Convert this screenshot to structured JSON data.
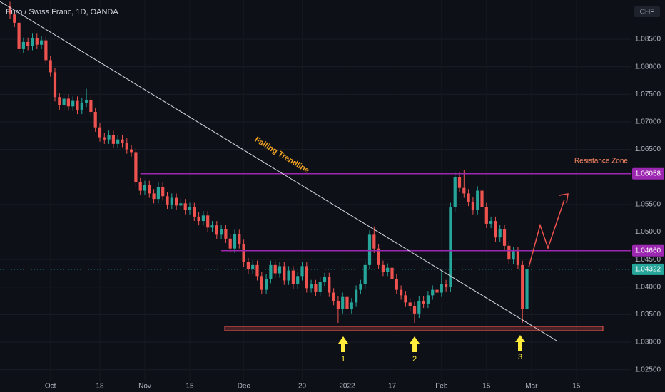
{
  "chart_data": {
    "type": "candlestick",
    "title": "Euro / Swiss Franc, 1D, OANDA",
    "y_unit": "CHF",
    "up_color": "#26a69a",
    "down_color": "#ef5350",
    "open": [
      1.091,
      1.0895,
      1.088,
      1.0832,
      1.0845,
      1.0838,
      1.0852,
      1.084,
      1.0848,
      1.0812,
      1.079,
      1.0745,
      1.073,
      1.0742,
      1.0728,
      1.0738,
      1.0722,
      1.0735,
      1.074,
      1.0718,
      1.069,
      1.0672,
      1.0668,
      1.0676,
      1.066,
      1.0668,
      1.0662,
      1.065,
      1.0645,
      1.059,
      1.0575,
      1.0585,
      1.057,
      1.056,
      1.0582,
      1.0565,
      1.055,
      1.0562,
      1.0548,
      1.0552,
      1.054,
      1.0545,
      1.0528,
      1.052,
      1.053,
      1.0508,
      1.0512,
      1.0495,
      1.0505,
      1.0488,
      1.047,
      1.0496,
      1.0478,
      1.0445,
      1.0432,
      1.044,
      1.042,
      1.0395,
      1.0415,
      1.044,
      1.0425,
      1.0438,
      1.0412,
      1.043,
      1.0405,
      1.042,
      1.0438,
      1.0398,
      1.0405,
      1.0392,
      1.041,
      1.0418,
      1.039,
      1.0375,
      1.036,
      1.0382,
      1.036,
      1.0372,
      1.0395,
      1.0405,
      1.044,
      1.0495,
      1.047,
      1.044,
      1.0428,
      1.0435,
      1.0415,
      1.0395,
      1.0385,
      1.0372,
      1.0365,
      1.0352,
      1.0375,
      1.037,
      1.0385,
      1.0395,
      1.039,
      1.0405,
      1.04,
      1.0545,
      1.06,
      1.058,
      1.057,
      1.0555,
      1.054,
      1.0575,
      1.0545,
      1.0515,
      1.052,
      1.049,
      1.0505,
      1.0475,
      1.045,
      1.0465,
      1.044,
      1.036
    ],
    "high": [
      1.0918,
      1.0903,
      1.0888,
      1.0853,
      1.0853,
      1.086,
      1.086,
      1.0856,
      1.0856,
      1.082,
      1.0798,
      1.0753,
      1.075,
      1.075,
      1.0746,
      1.0746,
      1.0743,
      1.076,
      1.0748,
      1.0726,
      1.0698,
      1.068,
      1.0684,
      1.0684,
      1.0676,
      1.0676,
      1.067,
      1.0658,
      1.0653,
      1.0598,
      1.0593,
      1.0593,
      1.0578,
      1.059,
      1.059,
      1.0573,
      1.057,
      1.057,
      1.056,
      1.056,
      1.0553,
      1.0553,
      1.0536,
      1.0538,
      1.0538,
      1.052,
      1.052,
      1.0513,
      1.0513,
      1.0496,
      1.0504,
      1.0504,
      1.0486,
      1.0453,
      1.0448,
      1.0448,
      1.0428,
      1.0423,
      1.0448,
      1.0448,
      1.0446,
      1.0446,
      1.0438,
      1.0438,
      1.0428,
      1.0446,
      1.0446,
      1.0413,
      1.0413,
      1.0418,
      1.0426,
      1.0426,
      1.0398,
      1.0383,
      1.039,
      1.039,
      1.038,
      1.0403,
      1.0413,
      1.0448,
      1.0503,
      1.051,
      1.0478,
      1.0448,
      1.0443,
      1.0443,
      1.0423,
      1.0403,
      1.0393,
      1.038,
      1.0373,
      1.0383,
      1.0383,
      1.0393,
      1.0403,
      1.0403,
      1.043,
      1.0413,
      1.0553,
      1.0608,
      1.0608,
      1.0612,
      1.0578,
      1.0563,
      1.0583,
      1.0608,
      1.0553,
      1.0528,
      1.0528,
      1.0513,
      1.0513,
      1.0483,
      1.0473,
      1.0473,
      1.0448,
      1.044
    ],
    "low": [
      1.0887,
      1.0872,
      1.0824,
      1.0824,
      1.083,
      1.083,
      1.0832,
      1.0832,
      1.0804,
      1.0782,
      1.0737,
      1.0722,
      1.0722,
      1.072,
      1.072,
      1.0714,
      1.0714,
      1.0727,
      1.071,
      1.0682,
      1.0664,
      1.066,
      1.066,
      1.0652,
      1.0652,
      1.0654,
      1.0642,
      1.0637,
      1.0582,
      1.0567,
      1.0567,
      1.0562,
      1.0552,
      1.0552,
      1.0557,
      1.0542,
      1.0542,
      1.054,
      1.054,
      1.0532,
      1.0532,
      1.052,
      1.0512,
      1.0512,
      1.05,
      1.05,
      1.0487,
      1.0487,
      1.048,
      1.0462,
      1.0462,
      1.047,
      1.0437,
      1.0424,
      1.0424,
      1.0412,
      1.0387,
      1.0387,
      1.0407,
      1.0417,
      1.0417,
      1.0404,
      1.0404,
      1.0397,
      1.0397,
      1.0412,
      1.039,
      1.039,
      1.0384,
      1.0384,
      1.0402,
      1.0382,
      1.0367,
      1.0335,
      1.0352,
      1.034,
      1.0352,
      1.0364,
      1.0387,
      1.0397,
      1.0432,
      1.0462,
      1.0432,
      1.042,
      1.042,
      1.0407,
      1.0387,
      1.0377,
      1.0364,
      1.0357,
      1.0335,
      1.0344,
      1.0362,
      1.0362,
      1.0377,
      1.0382,
      1.0382,
      1.0392,
      1.0392,
      1.0537,
      1.0572,
      1.0562,
      1.0547,
      1.0532,
      1.0532,
      1.0537,
      1.0507,
      1.0507,
      1.0482,
      1.0482,
      1.0467,
      1.0442,
      1.0442,
      1.0432,
      1.0335,
      1.034
    ],
    "close": [
      1.0895,
      1.088,
      1.0832,
      1.0845,
      1.0838,
      1.0852,
      1.084,
      1.0848,
      1.0812,
      1.079,
      1.0745,
      1.073,
      1.0742,
      1.0728,
      1.0738,
      1.0722,
      1.0735,
      1.074,
      1.0718,
      1.069,
      1.0672,
      1.0668,
      1.0676,
      1.066,
      1.0668,
      1.0662,
      1.065,
      1.0645,
      1.059,
      1.0575,
      1.0585,
      1.057,
      1.056,
      1.0582,
      1.0565,
      1.055,
      1.0562,
      1.0548,
      1.0552,
      1.054,
      1.0545,
      1.0528,
      1.052,
      1.053,
      1.0508,
      1.0512,
      1.0495,
      1.0505,
      1.0488,
      1.047,
      1.0496,
      1.0478,
      1.0445,
      1.0432,
      1.044,
      1.042,
      1.0395,
      1.0415,
      1.044,
      1.0425,
      1.0438,
      1.0412,
      1.043,
      1.0405,
      1.042,
      1.0438,
      1.0398,
      1.0405,
      1.0392,
      1.041,
      1.0418,
      1.039,
      1.0375,
      1.036,
      1.0382,
      1.036,
      1.0372,
      1.0395,
      1.0405,
      1.044,
      1.0495,
      1.047,
      1.044,
      1.0428,
      1.0435,
      1.0415,
      1.0395,
      1.0385,
      1.0372,
      1.0365,
      1.0352,
      1.0375,
      1.037,
      1.0385,
      1.0395,
      1.039,
      1.0405,
      1.04,
      1.0545,
      1.06,
      1.058,
      1.057,
      1.0555,
      1.054,
      1.0575,
      1.0545,
      1.0515,
      1.052,
      1.049,
      1.0505,
      1.0475,
      1.045,
      1.0465,
      1.044,
      1.036,
      1.0432
    ],
    "xlim": [
      -2.22,
      138.25
    ],
    "ylim": [
      1.02289,
      1.09212
    ],
    "xticks": [
      {
        "value": 9,
        "label": "Oct"
      },
      {
        "value": 20,
        "label": "18"
      },
      {
        "value": 30,
        "label": "Nov"
      },
      {
        "value": 40,
        "label": "15"
      },
      {
        "value": 52,
        "label": "Dec"
      },
      {
        "value": 65,
        "label": "20"
      },
      {
        "value": 75,
        "label": "2022"
      },
      {
        "value": 85,
        "label": "17"
      },
      {
        "value": 96,
        "label": "Feb"
      },
      {
        "value": 106,
        "label": "15"
      },
      {
        "value": 116,
        "label": "Mar"
      },
      {
        "value": 126,
        "label": "15"
      }
    ],
    "yticks": [
      {
        "value": 1.085,
        "label": "1.08500"
      },
      {
        "value": 1.08,
        "label": "1.08000"
      },
      {
        "value": 1.075,
        "label": "1.07500"
      },
      {
        "value": 1.07,
        "label": "1.07000"
      },
      {
        "value": 1.065,
        "label": "1.06500"
      },
      {
        "value": 1.055,
        "label": "1.05500"
      },
      {
        "value": 1.05,
        "label": "1.05000"
      },
      {
        "value": 1.045,
        "label": "1.04500"
      },
      {
        "value": 1.04,
        "label": "1.04000"
      },
      {
        "value": 1.035,
        "label": "1.03500"
      },
      {
        "value": 1.03,
        "label": "1.03000"
      },
      {
        "value": 1.025,
        "label": "1.02500"
      }
    ],
    "levels": [
      {
        "value": 1.06058,
        "label": "1.06058",
        "color": "#9c27b0",
        "start": 29
      },
      {
        "value": 1.0466,
        "label": "1.04660",
        "color": "#9c27b0",
        "start": 47
      }
    ],
    "last_price": {
      "value": 1.04322,
      "label": "1.04322",
      "color": "#26a69a"
    },
    "annotations": {
      "trendline": "Falling Trendline",
      "resistance": "Resistance Zone",
      "touches": [
        "1",
        "2",
        "3"
      ]
    }
  }
}
